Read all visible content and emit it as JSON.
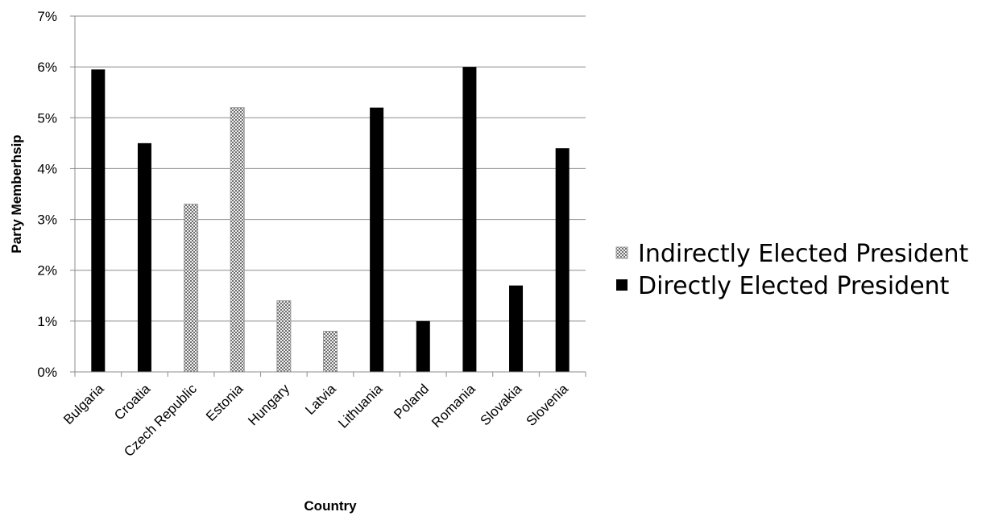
{
  "chart_data": {
    "type": "bar",
    "xlabel": "Country",
    "ylabel": "Party Memberhsip",
    "ylim": [
      0,
      7
    ],
    "yticks": [
      "0%",
      "1%",
      "2%",
      "3%",
      "4%",
      "5%",
      "6%",
      "7%"
    ],
    "grid": true,
    "legend_position": "right",
    "categories": [
      "Bulgaria",
      "Croatia",
      "Czech Republic",
      "Estonia",
      "Hungary",
      "Latvia",
      "Lithuania",
      "Poland",
      "Romania",
      "Slovakia",
      "Slovenia"
    ],
    "series": [
      {
        "name": "Indirectly Elected President",
        "color": "#b0b0b0",
        "pattern": "checkered",
        "values": [
          null,
          null,
          3.3,
          5.2,
          1.4,
          0.8,
          null,
          null,
          null,
          null,
          null
        ]
      },
      {
        "name": "Directly Elected President",
        "color": "#000000",
        "pattern": "solid",
        "values": [
          5.95,
          4.5,
          null,
          null,
          null,
          null,
          5.2,
          1.0,
          6.0,
          1.7,
          4.4
        ]
      }
    ]
  }
}
